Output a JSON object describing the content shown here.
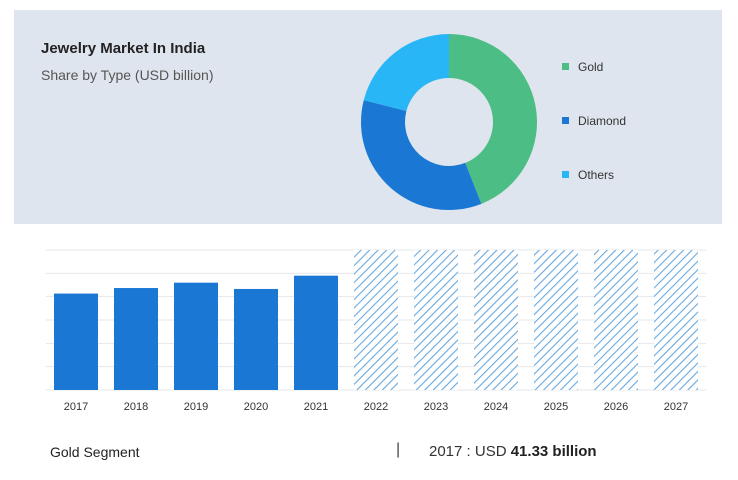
{
  "title": "Jewelry Market In India",
  "subtitle": "Share by Type (USD billion)",
  "colors": {
    "gold": "#4cbe85",
    "diamond": "#1a78d4",
    "others": "#29b6f6",
    "panel": "#dfe5ee"
  },
  "chart_data": [
    {
      "type": "pie",
      "donut": true,
      "title": "",
      "legend_position": "right",
      "slices": [
        {
          "label": "Gold",
          "value": 44,
          "color": "#4cbe85"
        },
        {
          "label": "Diamond",
          "value": 35,
          "color": "#1a78d4"
        },
        {
          "label": "Others",
          "value": 21,
          "color": "#29b6f6"
        }
      ]
    },
    {
      "type": "bar",
      "title": "",
      "xlabel": "",
      "ylabel": "",
      "ylim": [
        0,
        60
      ],
      "grid": true,
      "categories": [
        "2017",
        "2018",
        "2019",
        "2020",
        "2021",
        "2022",
        "2023",
        "2024",
        "2025",
        "2026",
        "2027"
      ],
      "values": [
        41.33,
        43.7,
        46,
        43.3,
        49,
        null,
        null,
        null,
        null,
        null,
        null
      ],
      "forecast_categories": [
        "2022",
        "2023",
        "2024",
        "2025",
        "2026",
        "2027"
      ],
      "bar_color": "#1a78d4",
      "forecast_pattern": "diagonal-hatch"
    }
  ],
  "footer": {
    "segment_label": "Gold Segment",
    "separator": "|",
    "value_prefix": "2017 : USD ",
    "value_bold": "41.33 billion"
  }
}
